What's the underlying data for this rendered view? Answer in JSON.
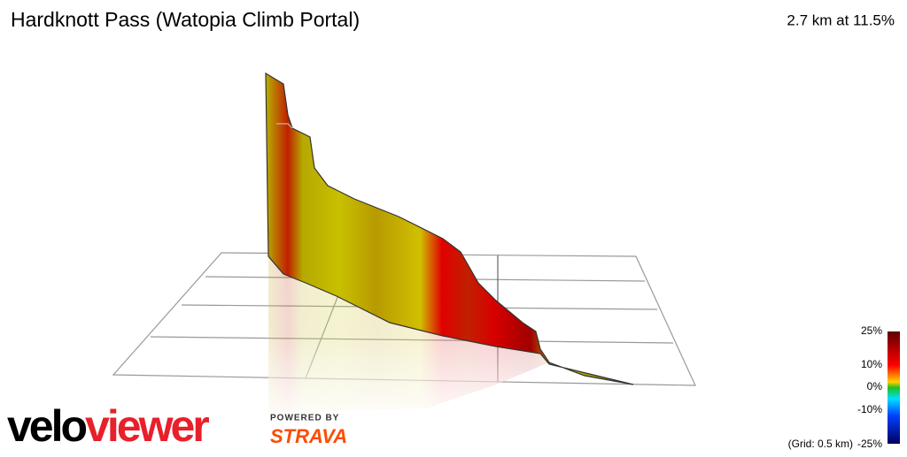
{
  "header": {
    "title": "Hardknott Pass (Watopia Climb Portal)",
    "stats": "2.7 km at 11.5%"
  },
  "legend": {
    "labels": [
      "25%",
      "10%",
      "0%",
      "-10%",
      "-25%"
    ],
    "grid_note": "(Grid: 0.5 km)"
  },
  "logo": {
    "velo": "velo",
    "viewer": "viewer",
    "powered_by": "POWERED BY",
    "strava": "STRAVA"
  }
}
